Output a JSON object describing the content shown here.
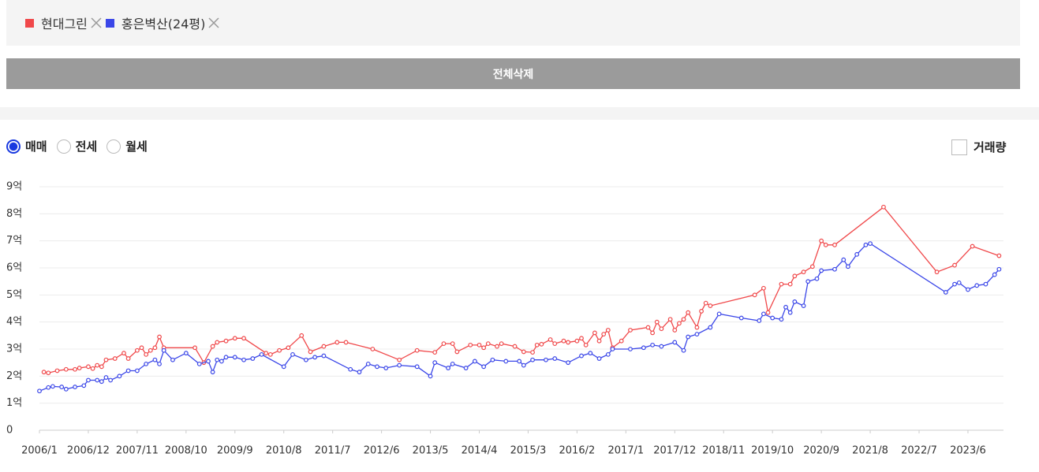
{
  "ui": {
    "delete_all": "전체삭제",
    "trade_types": [
      "매매",
      "전세",
      "월세"
    ],
    "volume_toggle": "거래량"
  },
  "chart_data": {
    "type": "line",
    "series": [
      {
        "name": "현대그린",
        "color": "#f0484a",
        "x": [
          "2006/2",
          "2006/3",
          "2006/5",
          "2006/7",
          "2006/9",
          "2006/10",
          "2006/12",
          "2007/1",
          "2007/2",
          "2007/3",
          "2007/4",
          "2007/6",
          "2007/8",
          "2007/9",
          "2007/11",
          "2007/12",
          "2008/1",
          "2008/2",
          "2008/3",
          "2008/4",
          "2008/5",
          "2008/12",
          "2009/2",
          "2009/4",
          "2009/5",
          "2009/7",
          "2009/9",
          "2009/11",
          "2010/4",
          "2010/5",
          "2010/7",
          "2010/9",
          "2010/12",
          "2011/2",
          "2011/5",
          "2011/8",
          "2011/10",
          "2012/4",
          "2012/10",
          "2013/2",
          "2013/6",
          "2013/8",
          "2013/10",
          "2013/11",
          "2014/2",
          "2014/4",
          "2014/5",
          "2014/6",
          "2014/8",
          "2014/9",
          "2014/12",
          "2015/2",
          "2015/4",
          "2015/5",
          "2015/6",
          "2015/8",
          "2015/9",
          "2015/11",
          "2015/12",
          "2016/2",
          "2016/3",
          "2016/4",
          "2016/6",
          "2016/7",
          "2016/8",
          "2016/9",
          "2016/10",
          "2016/12",
          "2017/2",
          "2017/6",
          "2017/7",
          "2017/8",
          "2017/9",
          "2017/11",
          "2017/12",
          "2018/1",
          "2018/2",
          "2018/3",
          "2018/5",
          "2018/6",
          "2018/7",
          "2018/8",
          "2019/6",
          "2019/8",
          "2019/9",
          "2019/12",
          "2020/2",
          "2020/3",
          "2020/5",
          "2020/7",
          "2020/9",
          "2020/10",
          "2020/12",
          "2021/11",
          "2022/11",
          "2023/3",
          "2023/7",
          "2024/1"
        ],
        "values": [
          2.15,
          2.12,
          2.2,
          2.25,
          2.25,
          2.3,
          2.35,
          2.28,
          2.4,
          2.35,
          2.6,
          2.65,
          2.85,
          2.65,
          2.95,
          3.05,
          2.8,
          2.95,
          3.05,
          3.45,
          3.05,
          3.05,
          2.5,
          3.1,
          3.25,
          3.3,
          3.4,
          3.4,
          2.85,
          2.8,
          2.95,
          3.05,
          3.5,
          2.9,
          3.1,
          3.25,
          3.25,
          3.0,
          2.6,
          2.95,
          2.88,
          3.2,
          3.2,
          2.9,
          3.15,
          3.15,
          3.05,
          3.2,
          3.1,
          3.2,
          3.1,
          2.9,
          2.88,
          3.15,
          3.18,
          3.35,
          3.2,
          3.3,
          3.25,
          3.3,
          3.4,
          3.15,
          3.6,
          3.3,
          3.55,
          3.7,
          3.05,
          3.3,
          3.7,
          3.8,
          3.6,
          4.0,
          3.75,
          4.1,
          3.7,
          3.95,
          4.1,
          4.35,
          3.8,
          4.4,
          4.7,
          4.6,
          5.0,
          5.25,
          4.35,
          5.4,
          5.4,
          5.7,
          5.85,
          6.05,
          7.0,
          6.85,
          6.85,
          8.25,
          5.85,
          6.1,
          6.8,
          6.45
        ]
      },
      {
        "name": "홍은벽산(24평)",
        "color": "#3a46e8",
        "x": [
          "2006/1",
          "2006/3",
          "2006/4",
          "2006/6",
          "2006/7",
          "2006/9",
          "2006/11",
          "2006/12",
          "2007/2",
          "2007/3",
          "2007/4",
          "2007/5",
          "2007/7",
          "2007/9",
          "2007/11",
          "2008/1",
          "2008/3",
          "2008/4",
          "2008/5",
          "2008/7",
          "2008/10",
          "2009/1",
          "2009/3",
          "2009/4",
          "2009/5",
          "2009/6",
          "2009/7",
          "2009/9",
          "2009/11",
          "2010/1",
          "2010/3",
          "2010/8",
          "2010/10",
          "2011/1",
          "2011/3",
          "2011/5",
          "2011/11",
          "2012/1",
          "2012/3",
          "2012/5",
          "2012/7",
          "2012/10",
          "2013/2",
          "2013/5",
          "2013/6",
          "2013/9",
          "2013/10",
          "2014/1",
          "2014/3",
          "2014/5",
          "2014/7",
          "2014/10",
          "2015/1",
          "2015/2",
          "2015/4",
          "2015/7",
          "2015/9",
          "2015/12",
          "2016/3",
          "2016/5",
          "2016/7",
          "2016/9",
          "2016/10",
          "2017/2",
          "2017/5",
          "2017/7",
          "2017/9",
          "2017/12",
          "2018/2",
          "2018/3",
          "2018/5",
          "2018/8",
          "2018/10",
          "2019/3",
          "2019/7",
          "2019/8",
          "2019/10",
          "2019/12",
          "2020/1",
          "2020/2",
          "2020/3",
          "2020/5",
          "2020/6",
          "2020/8",
          "2020/9",
          "2020/12",
          "2021/2",
          "2021/3",
          "2021/5",
          "2021/7",
          "2021/8",
          "2023/1",
          "2023/3",
          "2023/4",
          "2023/6",
          "2023/8",
          "2023/10",
          "2023/12",
          "2024/1"
        ],
        "values": [
          1.45,
          1.58,
          1.62,
          1.6,
          1.52,
          1.6,
          1.65,
          1.85,
          1.85,
          1.8,
          1.95,
          1.85,
          2.0,
          2.2,
          2.2,
          2.45,
          2.6,
          2.45,
          2.95,
          2.6,
          2.85,
          2.45,
          2.55,
          2.15,
          2.6,
          2.55,
          2.7,
          2.7,
          2.6,
          2.65,
          2.8,
          2.35,
          2.8,
          2.6,
          2.7,
          2.75,
          2.25,
          2.15,
          2.45,
          2.35,
          2.3,
          2.4,
          2.35,
          2.0,
          2.5,
          2.3,
          2.45,
          2.3,
          2.55,
          2.35,
          2.6,
          2.55,
          2.55,
          2.4,
          2.6,
          2.6,
          2.65,
          2.5,
          2.75,
          2.85,
          2.65,
          2.8,
          3.0,
          3.0,
          3.05,
          3.15,
          3.1,
          3.25,
          2.95,
          3.45,
          3.55,
          3.8,
          4.3,
          4.15,
          4.05,
          4.3,
          4.15,
          4.1,
          4.55,
          4.35,
          4.75,
          4.6,
          5.5,
          5.6,
          5.9,
          5.95,
          6.3,
          6.05,
          6.5,
          6.85,
          6.9,
          5.1,
          5.4,
          5.45,
          5.2,
          5.35,
          5.4,
          5.75,
          5.95
        ]
      }
    ],
    "xlim": [
      "2006/1",
      "2024/2"
    ],
    "xticks": [
      "2006/1",
      "2006/12",
      "2007/11",
      "2008/10",
      "2009/9",
      "2010/8",
      "2011/7",
      "2012/6",
      "2013/5",
      "2014/4",
      "2015/3",
      "2016/2",
      "2017/1",
      "2017/12",
      "2018/11",
      "2019/10",
      "2020/9",
      "2021/8",
      "2022/7",
      "2023/6"
    ],
    "ylim": [
      0,
      9
    ],
    "yticks": [
      0,
      {
        "value": 1,
        "label": "1억"
      },
      {
        "value": 2,
        "label": "2억"
      },
      {
        "value": 3,
        "label": "3억"
      },
      {
        "value": 4,
        "label": "4억"
      },
      {
        "value": 5,
        "label": "5억"
      },
      {
        "value": 6,
        "label": "6억"
      },
      {
        "value": 7,
        "label": "7억"
      },
      {
        "value": 8,
        "label": "8억"
      },
      {
        "value": 9,
        "label": "9억"
      }
    ],
    "grid": true
  }
}
